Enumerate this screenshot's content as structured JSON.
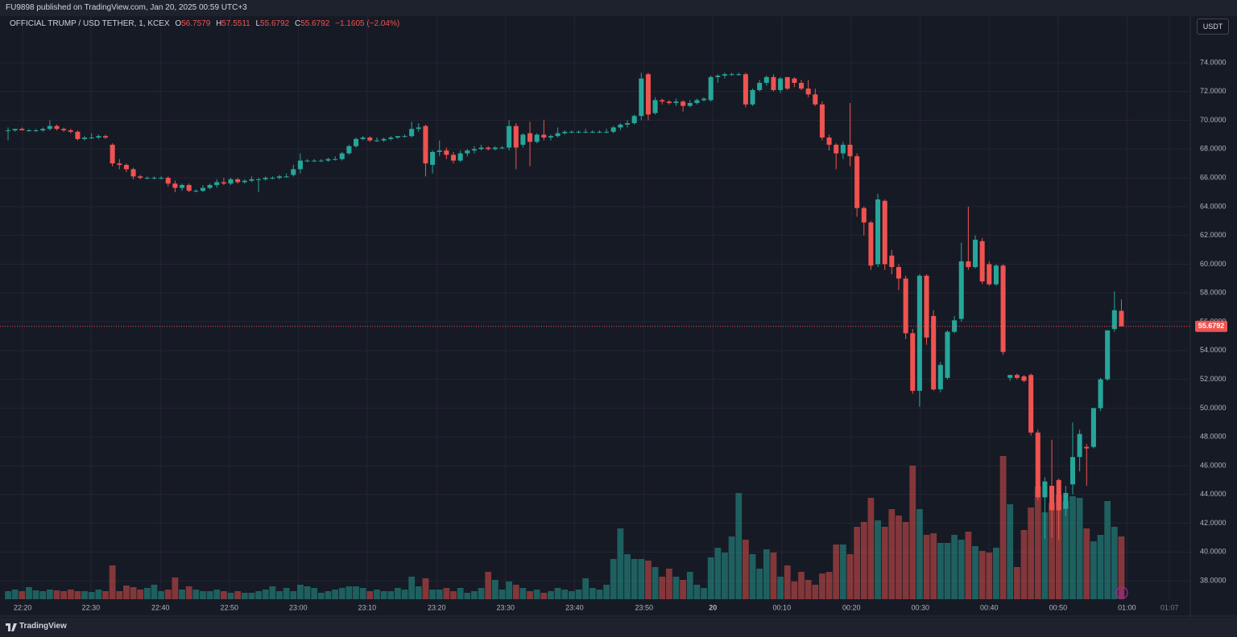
{
  "header": "FU9898 published on TradingView.com, Jan 20, 2025 00:59 UTC+3",
  "footer": "TradingView",
  "chart_data": {
    "type": "candlestick",
    "title": "OFFICIAL TRUMP / USD TETHER, 1, KCEX",
    "ohlc_labels": [
      "O",
      "H",
      "L",
      "C"
    ],
    "change": "−1.1605 (−2.04%)",
    "currency": "USDT",
    "up_color": "#26a69a",
    "down_color": "#ef5350",
    "grid": true,
    "xlim": [
      -1.16,
      169.9
    ],
    "xticks": [
      {
        "value": 2.1,
        "label": "22:20"
      },
      {
        "value": 11.9,
        "label": "22:30"
      },
      {
        "value": 21.9,
        "label": "22:40"
      },
      {
        "value": 31.8,
        "label": "22:50"
      },
      {
        "value": 41.7,
        "label": "23:00"
      },
      {
        "value": 51.6,
        "label": "23:10"
      },
      {
        "value": 61.6,
        "label": "23:20"
      },
      {
        "value": 71.5,
        "label": "23:30"
      },
      {
        "value": 81.4,
        "label": "23:40"
      },
      {
        "value": 91.4,
        "label": "23:50"
      },
      {
        "value": 101.3,
        "label": "20"
      },
      {
        "value": 111.2,
        "label": "00:10"
      },
      {
        "value": 121.2,
        "label": "00:20"
      },
      {
        "value": 131.1,
        "label": "00:30"
      },
      {
        "value": 141.0,
        "label": "00:40"
      },
      {
        "value": 150.9,
        "label": "00:50"
      },
      {
        "value": 160.8,
        "label": "01:00"
      },
      {
        "value": 166.9,
        "label": "01:07"
      }
    ],
    "ylim": [
      36.72,
      77.24
    ],
    "yticks": [
      {
        "value": 38,
        "label": "38.0000"
      },
      {
        "value": 40,
        "label": "40.0000"
      },
      {
        "value": 42,
        "label": "42.0000"
      },
      {
        "value": 44,
        "label": "44.0000"
      },
      {
        "value": 46,
        "label": "46.0000"
      },
      {
        "value": 48,
        "label": "48.0000"
      },
      {
        "value": 50,
        "label": "50.0000"
      },
      {
        "value": 52,
        "label": "52.0000"
      },
      {
        "value": 54,
        "label": "54.0000"
      },
      {
        "value": 56,
        "label": "56.0000"
      },
      {
        "value": 58,
        "label": "58.0000"
      },
      {
        "value": 60,
        "label": "60.0000"
      },
      {
        "value": 62,
        "label": "62.0000"
      },
      {
        "value": 64,
        "label": "64.0000"
      },
      {
        "value": 66,
        "label": "66.0000"
      },
      {
        "value": 68,
        "label": "68.0000"
      },
      {
        "value": 70,
        "label": "70.0000"
      },
      {
        "value": 72,
        "label": "72.0000"
      },
      {
        "value": 74,
        "label": "74.0000"
      }
    ],
    "ohlc": [
      [
        69.3,
        69.5,
        68.6,
        69.3
      ],
      [
        69.3,
        69.4,
        69.2,
        69.4
      ],
      [
        69.4,
        69.5,
        69.3,
        69.3
      ],
      [
        69.3,
        69.4,
        69.2,
        69.3
      ],
      [
        69.3,
        69.4,
        69.2,
        69.3
      ],
      [
        69.3,
        69.5,
        69.2,
        69.4
      ],
      [
        69.4,
        70.0,
        69.3,
        69.6
      ],
      [
        69.6,
        69.7,
        69.3,
        69.4
      ],
      [
        69.4,
        69.5,
        69.2,
        69.3
      ],
      [
        69.3,
        69.4,
        69.1,
        69.2
      ],
      [
        69.2,
        69.3,
        68.6,
        68.7
      ],
      [
        68.7,
        68.9,
        68.6,
        68.8
      ],
      [
        68.8,
        69.1,
        68.7,
        68.8
      ],
      [
        68.8,
        69.0,
        68.7,
        68.9
      ],
      [
        68.9,
        69.0,
        68.7,
        68.8
      ],
      [
        68.3,
        68.4,
        66.8,
        67.0
      ],
      [
        67.0,
        67.3,
        66.6,
        66.9
      ],
      [
        66.9,
        67.0,
        66.4,
        66.6
      ],
      [
        66.6,
        66.7,
        65.9,
        66.1
      ],
      [
        66.1,
        66.2,
        65.9,
        66.0
      ],
      [
        66.0,
        66.1,
        65.9,
        66.0
      ],
      [
        66.0,
        66.1,
        65.9,
        66.0
      ],
      [
        66.0,
        66.1,
        65.9,
        66.0
      ],
      [
        66.0,
        66.1,
        65.4,
        65.6
      ],
      [
        65.6,
        65.8,
        65.0,
        65.3
      ],
      [
        65.3,
        65.6,
        65.1,
        65.5
      ],
      [
        65.5,
        65.6,
        65.0,
        65.1
      ],
      [
        65.1,
        65.2,
        65.0,
        65.1
      ],
      [
        65.1,
        65.5,
        65.0,
        65.3
      ],
      [
        65.3,
        65.6,
        65.2,
        65.5
      ],
      [
        65.5,
        65.9,
        65.3,
        65.7
      ],
      [
        65.7,
        66.0,
        65.5,
        65.6
      ],
      [
        65.6,
        66.0,
        65.5,
        65.9
      ],
      [
        65.9,
        66.0,
        65.6,
        65.7
      ],
      [
        65.7,
        65.9,
        65.6,
        65.8
      ],
      [
        65.8,
        66.1,
        65.7,
        65.9
      ],
      [
        65.9,
        66.0,
        65.0,
        65.9
      ],
      [
        65.9,
        66.1,
        65.8,
        66.0
      ],
      [
        66.0,
        66.1,
        65.9,
        66.0
      ],
      [
        66.0,
        66.2,
        65.9,
        66.1
      ],
      [
        66.1,
        66.3,
        66.0,
        66.1
      ],
      [
        66.2,
        66.9,
        66.1,
        66.6
      ],
      [
        66.6,
        67.7,
        66.3,
        67.2
      ],
      [
        67.2,
        67.3,
        67.1,
        67.2
      ],
      [
        67.2,
        67.3,
        67.1,
        67.2
      ],
      [
        67.2,
        67.3,
        67.1,
        67.2
      ],
      [
        67.2,
        67.4,
        67.1,
        67.3
      ],
      [
        67.3,
        67.5,
        67.2,
        67.3
      ],
      [
        67.3,
        67.8,
        67.2,
        67.7
      ],
      [
        67.7,
        68.3,
        67.6,
        68.2
      ],
      [
        68.2,
        68.8,
        68.1,
        68.7
      ],
      [
        68.7,
        68.9,
        68.6,
        68.8
      ],
      [
        68.8,
        68.9,
        68.5,
        68.6
      ],
      [
        68.6,
        68.8,
        68.5,
        68.6
      ],
      [
        68.6,
        68.8,
        68.5,
        68.7
      ],
      [
        68.7,
        68.9,
        68.6,
        68.8
      ],
      [
        68.8,
        68.9,
        68.7,
        68.9
      ],
      [
        68.9,
        69.0,
        68.8,
        68.9
      ],
      [
        68.9,
        69.9,
        68.8,
        69.4
      ],
      [
        69.4,
        69.8,
        69.2,
        69.5
      ],
      [
        69.6,
        69.7,
        66.1,
        67.0
      ],
      [
        66.9,
        67.9,
        66.3,
        67.8
      ],
      [
        67.8,
        68.6,
        67.5,
        67.9
      ],
      [
        67.9,
        68.1,
        67.3,
        67.6
      ],
      [
        67.6,
        67.8,
        67.0,
        67.2
      ],
      [
        67.2,
        67.9,
        67.1,
        67.7
      ],
      [
        67.7,
        68.0,
        67.5,
        67.9
      ],
      [
        67.9,
        68.2,
        67.7,
        68.0
      ],
      [
        68.0,
        68.3,
        67.9,
        68.1
      ],
      [
        68.1,
        68.2,
        67.9,
        68.0
      ],
      [
        68.0,
        68.2,
        67.9,
        68.1
      ],
      [
        68.1,
        68.2,
        68.0,
        68.1
      ],
      [
        68.1,
        70.0,
        67.9,
        69.6
      ],
      [
        69.6,
        69.8,
        66.6,
        68.1
      ],
      [
        68.3,
        69.1,
        68.1,
        69.0
      ],
      [
        69.1,
        69.9,
        66.8,
        68.5
      ],
      [
        68.5,
        69.1,
        68.4,
        69.0
      ],
      [
        69.0,
        70.0,
        68.6,
        68.8
      ],
      [
        68.8,
        69.0,
        68.6,
        68.9
      ],
      [
        68.9,
        69.5,
        68.8,
        69.1
      ],
      [
        69.1,
        69.3,
        69.0,
        69.2
      ],
      [
        69.2,
        69.3,
        69.1,
        69.2
      ],
      [
        69.2,
        69.3,
        69.1,
        69.2
      ],
      [
        69.2,
        69.4,
        69.1,
        69.2
      ],
      [
        69.2,
        69.3,
        69.1,
        69.2
      ],
      [
        69.2,
        69.3,
        69.1,
        69.2
      ],
      [
        69.2,
        69.4,
        69.1,
        69.2
      ],
      [
        69.2,
        69.6,
        69.1,
        69.5
      ],
      [
        69.5,
        69.8,
        69.3,
        69.7
      ],
      [
        69.7,
        70.0,
        69.5,
        69.8
      ],
      [
        69.8,
        70.4,
        69.7,
        70.3
      ],
      [
        70.3,
        73.3,
        70.0,
        72.9
      ],
      [
        73.2,
        73.3,
        70.0,
        70.4
      ],
      [
        70.5,
        71.6,
        70.4,
        71.4
      ],
      [
        71.4,
        71.5,
        71.1,
        71.3
      ],
      [
        71.3,
        71.4,
        71.1,
        71.2
      ],
      [
        71.2,
        71.5,
        71.0,
        71.3
      ],
      [
        71.3,
        71.4,
        70.6,
        71.0
      ],
      [
        71.0,
        71.4,
        70.9,
        71.2
      ],
      [
        71.2,
        71.5,
        71.1,
        71.4
      ],
      [
        71.4,
        71.6,
        71.3,
        71.5
      ],
      [
        71.4,
        73.1,
        71.3,
        73.0
      ],
      [
        73.0,
        73.2,
        72.6,
        73.1
      ],
      [
        73.1,
        73.3,
        72.9,
        73.2
      ],
      [
        73.2,
        73.3,
        73.1,
        73.2
      ],
      [
        73.2,
        73.3,
        73.1,
        73.2
      ],
      [
        73.2,
        73.3,
        70.9,
        71.1
      ],
      [
        71.1,
        72.2,
        71.0,
        72.1
      ],
      [
        72.1,
        72.8,
        72.0,
        72.6
      ],
      [
        72.6,
        73.1,
        72.4,
        73.0
      ],
      [
        73.0,
        73.2,
        72.0,
        72.1
      ],
      [
        72.1,
        73.0,
        71.9,
        72.9
      ],
      [
        73.0,
        73.0,
        72.1,
        72.2
      ],
      [
        72.9,
        73.0,
        72.3,
        72.6
      ],
      [
        72.6,
        72.8,
        72.1,
        72.2
      ],
      [
        72.2,
        72.8,
        71.6,
        71.8
      ],
      [
        71.8,
        72.2,
        71.0,
        71.1
      ],
      [
        71.1,
        71.3,
        68.6,
        68.8
      ],
      [
        68.8,
        69.0,
        67.9,
        68.3
      ],
      [
        68.3,
        68.4,
        66.6,
        67.7
      ],
      [
        67.7,
        68.5,
        67.3,
        68.3
      ],
      [
        68.3,
        71.2,
        66.8,
        67.5
      ],
      [
        67.5,
        67.7,
        63.3,
        63.9
      ],
      [
        63.9,
        64.0,
        62.0,
        62.9
      ],
      [
        62.9,
        63.0,
        59.6,
        59.9
      ],
      [
        60.0,
        64.9,
        59.8,
        64.5
      ],
      [
        64.4,
        64.5,
        59.6,
        60.0
      ],
      [
        60.6,
        61.0,
        59.3,
        59.8
      ],
      [
        59.8,
        60.0,
        58.2,
        59.0
      ],
      [
        59.0,
        59.2,
        54.8,
        55.2
      ],
      [
        55.2,
        55.5,
        51.0,
        51.2
      ],
      [
        51.2,
        59.3,
        50.1,
        59.2
      ],
      [
        59.2,
        59.3,
        54.4,
        54.9
      ],
      [
        56.4,
        56.8,
        51.2,
        51.3
      ],
      [
        51.3,
        53.2,
        51.1,
        53.0
      ],
      [
        52.1,
        55.4,
        52.0,
        55.3
      ],
      [
        55.3,
        56.4,
        55.2,
        56.1
      ],
      [
        56.2,
        61.5,
        56.0,
        60.2
      ],
      [
        60.2,
        64.0,
        59.6,
        59.8
      ],
      [
        59.8,
        62.0,
        59.7,
        61.7
      ],
      [
        61.6,
        61.8,
        58.6,
        58.8
      ],
      [
        60.0,
        60.2,
        58.5,
        58.6
      ],
      [
        58.6,
        60.0,
        58.5,
        59.9
      ],
      [
        59.9,
        60.0,
        53.7,
        53.9
      ],
      [
        52.1,
        52.3,
        51.9,
        52.3
      ],
      [
        52.3,
        52.4,
        52.0,
        52.1
      ],
      [
        52.2,
        52.3,
        51.8,
        51.9
      ],
      [
        52.3,
        52.4,
        48.1,
        48.3
      ],
      [
        48.3,
        48.5,
        43.6,
        43.8
      ],
      [
        43.8,
        45.2,
        40.9,
        44.9
      ],
      [
        44.6,
        47.8,
        41.0,
        42.9
      ],
      [
        45.0,
        45.1,
        40.8,
        42.9
      ],
      [
        43.0,
        44.6,
        42.5,
        44.1
      ],
      [
        44.7,
        49.0,
        44.0,
        46.6
      ],
      [
        46.6,
        48.5,
        45.6,
        48.2
      ],
      [
        47.3,
        47.5,
        44.6,
        47.2
      ],
      [
        47.3,
        50.0,
        47.2,
        50.0
      ],
      [
        50.0,
        52.1,
        49.8,
        52.0
      ],
      [
        52.0,
        55.4,
        51.9,
        55.4
      ],
      [
        55.5,
        58.1,
        55.3,
        56.8
      ],
      [
        56.7579,
        57.5511,
        55.6792,
        55.6792
      ]
    ],
    "volume": [
      10,
      12,
      10,
      15,
      11,
      10,
      12,
      11,
      10,
      12,
      10,
      10,
      9,
      12,
      10,
      42,
      10,
      17,
      15,
      12,
      14,
      18,
      10,
      12,
      27,
      12,
      16,
      12,
      10,
      10,
      12,
      10,
      8,
      10,
      8,
      8,
      10,
      12,
      16,
      10,
      14,
      10,
      18,
      16,
      14,
      8,
      10,
      12,
      14,
      16,
      16,
      14,
      10,
      12,
      10,
      10,
      14,
      12,
      28,
      16,
      26,
      12,
      12,
      14,
      10,
      14,
      8,
      10,
      14,
      34,
      24,
      12,
      22,
      18,
      14,
      10,
      12,
      8,
      10,
      14,
      12,
      10,
      12,
      26,
      14,
      12,
      18,
      50,
      88,
      56,
      50,
      50,
      48,
      40,
      28,
      38,
      28,
      24,
      34,
      18,
      14,
      52,
      64,
      58,
      78,
      132,
      74,
      56,
      38,
      62,
      58,
      28,
      42,
      22,
      34,
      24,
      18,
      32,
      34,
      68,
      68,
      56,
      90,
      96,
      126,
      98,
      90,
      112,
      104,
      96,
      166,
      112,
      80,
      82,
      70,
      70,
      80,
      74,
      84,
      66,
      60,
      58,
      64,
      178,
      118,
      40,
      86,
      114,
      140,
      108,
      120,
      130,
      122,
      128,
      126,
      88,
      72,
      80,
      122,
      90,
      78
    ]
  }
}
